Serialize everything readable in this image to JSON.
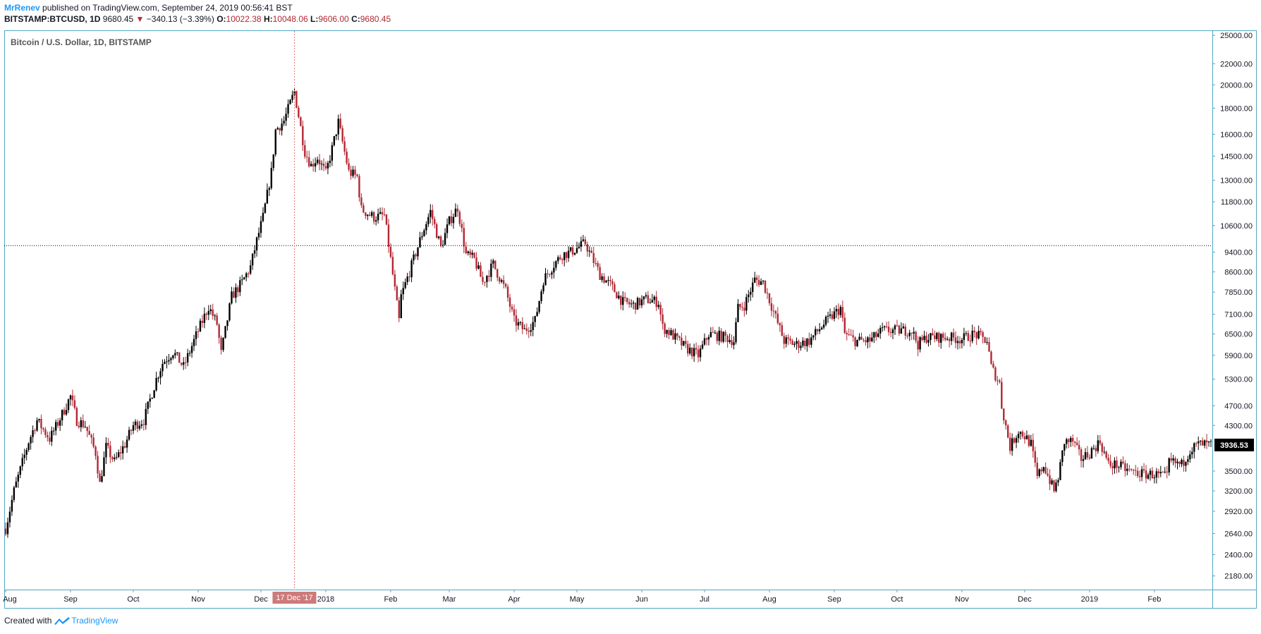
{
  "header": {
    "author": "MrRenev",
    "published_text": "published on TradingView.com, September 24, 2019 00:56:41 BST",
    "symbol_line": "BITSTAMP:BTCUSD, 1D",
    "last": "9680.45",
    "change_arrow": "▼",
    "change": "−340.13 (−3.39%)",
    "open_label": "O:",
    "open": "10022.38",
    "high_label": "H:",
    "high": "10048.06",
    "low_label": "L:",
    "low": "9606.00",
    "close_label": "C:",
    "close": "9680.45"
  },
  "footer": {
    "created_with": "Created with",
    "brand": "TradingView"
  },
  "colors": {
    "up": "#000000",
    "down": "#b22833",
    "frame": "#4fa8c4",
    "axis_text": "#131722",
    "crosshair": "#e57373",
    "date_label_bg": "#cc7a7a",
    "price_label_bg": "#000000"
  },
  "chart_data": {
    "type": "candlestick",
    "title": "Bitcoin / U.S. Dollar, 1D, BITSTAMP",
    "scale": "log",
    "ylim": [
      2050,
      25500
    ],
    "y_ticks": [
      "25000.00",
      "22000.00",
      "20000.00",
      "18000.00",
      "16000.00",
      "14500.00",
      "13000.00",
      "11800.00",
      "10600.00",
      "9400.00",
      "8600.00",
      "7850.00",
      "7100.00",
      "6500.00",
      "5900.00",
      "5300.00",
      "4700.00",
      "4300.00",
      "3500.00",
      "3200.00",
      "2920.00",
      "2640.00",
      "2400.00",
      "2180.00"
    ],
    "x_range": [
      "2017-08-01",
      "2019-02-28"
    ],
    "x_ticks": [
      {
        "label": "Aug",
        "date": "2017-08-01"
      },
      {
        "label": "Sep",
        "date": "2017-09-01"
      },
      {
        "label": "Oct",
        "date": "2017-10-01"
      },
      {
        "label": "Nov",
        "date": "2017-11-01"
      },
      {
        "label": "Dec",
        "date": "2017-12-01"
      },
      {
        "label": "2018",
        "date": "2018-01-01"
      },
      {
        "label": "Feb",
        "date": "2018-02-01"
      },
      {
        "label": "Mar",
        "date": "2018-03-01"
      },
      {
        "label": "Apr",
        "date": "2018-04-01"
      },
      {
        "label": "May",
        "date": "2018-05-01"
      },
      {
        "label": "Jun",
        "date": "2018-06-01"
      },
      {
        "label": "Jul",
        "date": "2018-07-01"
      },
      {
        "label": "Aug",
        "date": "2018-08-01"
      },
      {
        "label": "Sep",
        "date": "2018-09-01"
      },
      {
        "label": "Oct",
        "date": "2018-10-01"
      },
      {
        "label": "Nov",
        "date": "2018-11-01"
      },
      {
        "label": "Dec",
        "date": "2018-12-01"
      },
      {
        "label": "2019",
        "date": "2019-01-01"
      },
      {
        "label": "Feb",
        "date": "2019-02-01"
      }
    ],
    "close_series": [
      [
        "2017-08-01",
        2700
      ],
      [
        "2017-08-05",
        3200
      ],
      [
        "2017-08-12",
        4000
      ],
      [
        "2017-08-16",
        4400
      ],
      [
        "2017-08-22",
        4050
      ],
      [
        "2017-08-26",
        4350
      ],
      [
        "2017-09-01",
        4900
      ],
      [
        "2017-09-04",
        4400
      ],
      [
        "2017-09-08",
        4300
      ],
      [
        "2017-09-13",
        3800
      ],
      [
        "2017-09-15",
        3300
      ],
      [
        "2017-09-18",
        3900
      ],
      [
        "2017-09-22",
        3650
      ],
      [
        "2017-09-27",
        3950
      ],
      [
        "2017-10-01",
        4300
      ],
      [
        "2017-10-06",
        4400
      ],
      [
        "2017-10-12",
        5300
      ],
      [
        "2017-10-15",
        5700
      ],
      [
        "2017-10-20",
        6000
      ],
      [
        "2017-10-25",
        5600
      ],
      [
        "2017-10-31",
        6450
      ],
      [
        "2017-11-06",
        7350
      ],
      [
        "2017-11-10",
        6800
      ],
      [
        "2017-11-12",
        5950
      ],
      [
        "2017-11-17",
        7700
      ],
      [
        "2017-11-22",
        8200
      ],
      [
        "2017-11-26",
        8800
      ],
      [
        "2017-11-29",
        9900
      ],
      [
        "2017-12-02",
        11000
      ],
      [
        "2017-12-06",
        13500
      ],
      [
        "2017-12-08",
        16300
      ],
      [
        "2017-12-12",
        17000
      ],
      [
        "2017-12-17",
        19400
      ],
      [
        "2017-12-22",
        14800
      ],
      [
        "2017-12-25",
        13900
      ],
      [
        "2017-12-28",
        14400
      ],
      [
        "2018-01-01",
        13400
      ],
      [
        "2018-01-04",
        15000
      ],
      [
        "2018-01-07",
        16900
      ],
      [
        "2018-01-12",
        13500
      ],
      [
        "2018-01-16",
        13200
      ],
      [
        "2018-01-18",
        11400
      ],
      [
        "2018-01-24",
        11000
      ],
      [
        "2018-01-29",
        11100
      ],
      [
        "2018-02-01",
        9100
      ],
      [
        "2018-02-05",
        6900
      ],
      [
        "2018-02-06",
        7700
      ],
      [
        "2018-02-10",
        8600
      ],
      [
        "2018-02-16",
        10200
      ],
      [
        "2018-02-20",
        11300
      ],
      [
        "2018-02-25",
        9600
      ],
      [
        "2018-03-01",
        10800
      ],
      [
        "2018-03-05",
        11500
      ],
      [
        "2018-03-09",
        9300
      ],
      [
        "2018-03-13",
        9100
      ],
      [
        "2018-03-17",
        8200
      ],
      [
        "2018-03-22",
        8900
      ],
      [
        "2018-03-28",
        7900
      ],
      [
        "2018-04-01",
        6900
      ],
      [
        "2018-04-06",
        6600
      ],
      [
        "2018-04-11",
        6900
      ],
      [
        "2018-04-15",
        8300
      ],
      [
        "2018-04-20",
        8900
      ],
      [
        "2018-04-24",
        9300
      ],
      [
        "2018-04-28",
        9400
      ],
      [
        "2018-05-05",
        9800
      ],
      [
        "2018-05-08",
        9200
      ],
      [
        "2018-05-12",
        8500
      ],
      [
        "2018-05-17",
        8100
      ],
      [
        "2018-05-23",
        7500
      ],
      [
        "2018-05-28",
        7400
      ],
      [
        "2018-06-03",
        7600
      ],
      [
        "2018-06-09",
        7500
      ],
      [
        "2018-06-11",
        6700
      ],
      [
        "2018-06-15",
        6500
      ],
      [
        "2018-06-22",
        6100
      ],
      [
        "2018-06-28",
        5900
      ],
      [
        "2018-07-03",
        6500
      ],
      [
        "2018-07-11",
        6400
      ],
      [
        "2018-07-15",
        6300
      ],
      [
        "2018-07-17",
        7300
      ],
      [
        "2018-07-20",
        7400
      ],
      [
        "2018-07-25",
        8300
      ],
      [
        "2018-07-29",
        8200
      ],
      [
        "2018-08-04",
        7000
      ],
      [
        "2018-08-08",
        6300
      ],
      [
        "2018-08-14",
        6200
      ],
      [
        "2018-08-20",
        6300
      ],
      [
        "2018-08-27",
        6800
      ],
      [
        "2018-09-04",
        7300
      ],
      [
        "2018-09-06",
        6500
      ],
      [
        "2018-09-11",
        6300
      ],
      [
        "2018-09-18",
        6300
      ],
      [
        "2018-09-24",
        6600
      ],
      [
        "2018-10-01",
        6600
      ],
      [
        "2018-10-08",
        6600
      ],
      [
        "2018-10-11",
        6200
      ],
      [
        "2018-10-15",
        6400
      ],
      [
        "2018-10-25",
        6400
      ],
      [
        "2018-11-01",
        6350
      ],
      [
        "2018-11-07",
        6500
      ],
      [
        "2018-11-13",
        6300
      ],
      [
        "2018-11-15",
        5600
      ],
      [
        "2018-11-19",
        5200
      ],
      [
        "2018-11-20",
        4700
      ],
      [
        "2018-11-24",
        3900
      ],
      [
        "2018-11-28",
        4200
      ],
      [
        "2018-12-01",
        4100
      ],
      [
        "2018-12-04",
        3950
      ],
      [
        "2018-12-07",
        3400
      ],
      [
        "2018-12-10",
        3600
      ],
      [
        "2018-12-15",
        3200
      ],
      [
        "2018-12-17",
        3400
      ],
      [
        "2018-12-20",
        4000
      ],
      [
        "2018-12-24",
        4000
      ],
      [
        "2018-12-28",
        3700
      ],
      [
        "2019-01-01",
        3800
      ],
      [
        "2019-01-06",
        4000
      ],
      [
        "2019-01-10",
        3600
      ],
      [
        "2019-01-14",
        3600
      ],
      [
        "2019-01-20",
        3500
      ],
      [
        "2019-01-27",
        3450
      ],
      [
        "2019-02-01",
        3450
      ],
      [
        "2019-02-07",
        3400
      ],
      [
        "2019-02-08",
        3650
      ],
      [
        "2019-02-14",
        3600
      ],
      [
        "2019-02-18",
        3850
      ],
      [
        "2019-02-22",
        3950
      ],
      [
        "2019-02-28",
        3936
      ]
    ],
    "annotations": {
      "horizontal_line_price": 9680.45,
      "crosshair_date": "2017-12-17",
      "crosshair_label": "17 Dec '17",
      "last_price_label": "3936.53",
      "last_price": 3936.53
    }
  }
}
